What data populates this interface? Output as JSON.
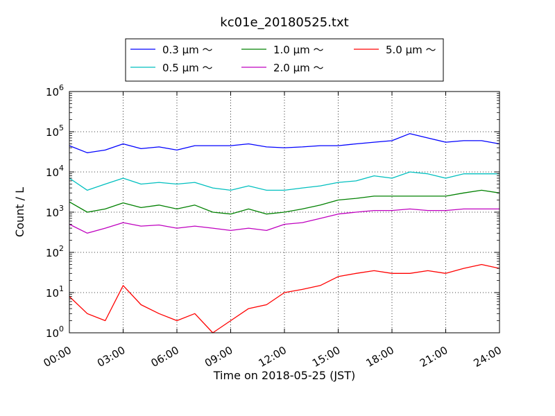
{
  "chart_data": {
    "type": "line",
    "title": "kc01e_20180525.txt",
    "xlabel": "Time on 2018-05-25 (JST)",
    "ylabel": "Count / L",
    "yscale": "log",
    "xlim": [
      "00:00",
      "24:00"
    ],
    "ylim": [
      1,
      1000000
    ],
    "grid": true,
    "legend_position": "top-outside",
    "x_ticks": [
      "00:00",
      "03:00",
      "06:00",
      "09:00",
      "12:00",
      "15:00",
      "18:00",
      "21:00",
      "24:00"
    ],
    "y_ticks": [
      {
        "base": "10",
        "exp": "0"
      },
      {
        "base": "10",
        "exp": "1"
      },
      {
        "base": "10",
        "exp": "2"
      },
      {
        "base": "10",
        "exp": "3"
      },
      {
        "base": "10",
        "exp": "4"
      },
      {
        "base": "10",
        "exp": "5"
      },
      {
        "base": "10",
        "exp": "6"
      }
    ],
    "x": [
      "00:00",
      "01:00",
      "02:00",
      "03:00",
      "04:00",
      "05:00",
      "06:00",
      "07:00",
      "08:00",
      "09:00",
      "10:00",
      "11:00",
      "12:00",
      "13:00",
      "14:00",
      "15:00",
      "16:00",
      "17:00",
      "18:00",
      "19:00",
      "20:00",
      "21:00",
      "22:00",
      "23:00",
      "24:00"
    ],
    "series": [
      {
        "name": "0.3 μm ～",
        "color": "#0000ff",
        "values": [
          45000,
          30000,
          35000,
          50000,
          38000,
          42000,
          35000,
          45000,
          45000,
          45000,
          50000,
          42000,
          40000,
          42000,
          45000,
          45000,
          50000,
          55000,
          60000,
          90000,
          70000,
          55000,
          60000,
          60000,
          50000
        ]
      },
      {
        "name": "0.5 μm ～",
        "color": "#00bfbf",
        "values": [
          7000,
          3500,
          5000,
          7000,
          5000,
          5500,
          5000,
          5500,
          4000,
          3500,
          4500,
          3500,
          3500,
          4000,
          4500,
          5500,
          6000,
          8000,
          7000,
          10000,
          9000,
          7000,
          9000,
          9000,
          9000
        ]
      },
      {
        "name": "1.0 μm ～",
        "color": "#008000",
        "values": [
          1800,
          1000,
          1200,
          1700,
          1300,
          1500,
          1200,
          1500,
          1000,
          900,
          1200,
          900,
          1000,
          1200,
          1500,
          2000,
          2200,
          2500,
          2500,
          2500,
          2500,
          2500,
          3000,
          3500,
          3000
        ]
      },
      {
        "name": "2.0 μm ～",
        "color": "#bf00bf",
        "values": [
          500,
          300,
          400,
          550,
          450,
          480,
          400,
          450,
          400,
          350,
          400,
          350,
          500,
          550,
          700,
          900,
          1000,
          1100,
          1100,
          1200,
          1100,
          1100,
          1200,
          1200,
          1200
        ]
      },
      {
        "name": "5.0 μm ～",
        "color": "#ff0000",
        "values": [
          8,
          3,
          2,
          15,
          5,
          3,
          2,
          3,
          1,
          2,
          4,
          5,
          10,
          12,
          15,
          25,
          30,
          35,
          30,
          30,
          35,
          30,
          40,
          50,
          40
        ]
      }
    ]
  }
}
